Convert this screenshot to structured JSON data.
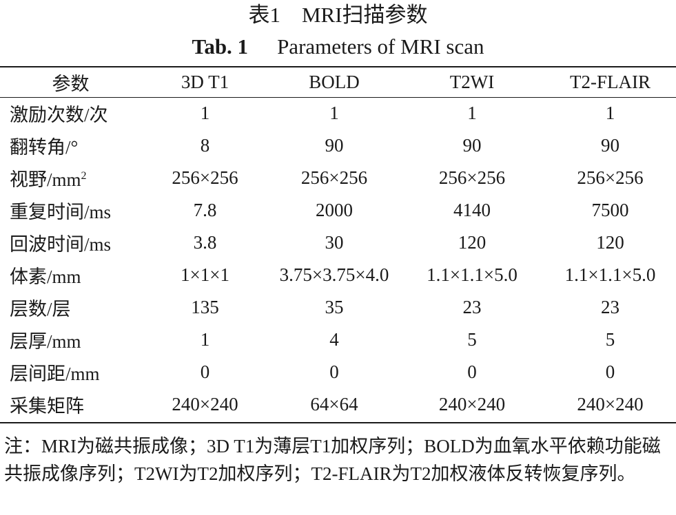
{
  "title_cn": "表1　MRI扫描参数",
  "title_en_label": "Tab. 1",
  "title_en_text": "Parameters of MRI scan",
  "columns": [
    "参数",
    "3D T1",
    "BOLD",
    "T2WI",
    "T2-FLAIR"
  ],
  "rows": [
    {
      "param": "激励次数/次",
      "sup": "",
      "values": [
        "1",
        "1",
        "1",
        "1"
      ]
    },
    {
      "param": "翻转角/°",
      "sup": "",
      "values": [
        "8",
        "90",
        "90",
        "90"
      ]
    },
    {
      "param": "视野/mm",
      "sup": "2",
      "values": [
        "256×256",
        "256×256",
        "256×256",
        "256×256"
      ]
    },
    {
      "param": "重复时间/ms",
      "sup": "",
      "values": [
        "7.8",
        "2000",
        "4140",
        "7500"
      ]
    },
    {
      "param": "回波时间/ms",
      "sup": "",
      "values": [
        "3.8",
        "30",
        "120",
        "120"
      ]
    },
    {
      "param": "体素/mm",
      "sup": "",
      "values": [
        "1×1×1",
        "3.75×3.75×4.0",
        "1.1×1.1×5.0",
        "1.1×1.1×5.0"
      ]
    },
    {
      "param": "层数/层",
      "sup": "",
      "values": [
        "135",
        "35",
        "23",
        "23"
      ]
    },
    {
      "param": "层厚/mm",
      "sup": "",
      "values": [
        "1",
        "4",
        "5",
        "5"
      ]
    },
    {
      "param": "层间距/mm",
      "sup": "",
      "values": [
        "0",
        "0",
        "0",
        "0"
      ]
    },
    {
      "param": "采集矩阵",
      "sup": "",
      "values": [
        "240×240",
        "64×64",
        "240×240",
        "240×240"
      ]
    }
  ],
  "note": "注：MRI为磁共振成像；3D T1为薄层T1加权序列；BOLD为血氧水平依赖功能磁共振成像序列；T2WI为T2加权序列；T2-FLAIR为T2加权液体反转恢复序列。"
}
